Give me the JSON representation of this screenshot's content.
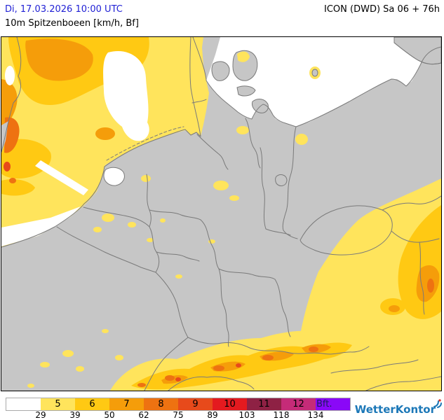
{
  "header": {
    "datetime": "Di, 17.03.2026 10:00 UTC",
    "parameter": "10m Spitzenboeen [km/h, Bf]",
    "model_run": "ICON (DWD) Sa 06 + 76h"
  },
  "legend": {
    "unit_label": "Bft.",
    "boxes": [
      {
        "label": "",
        "color": "#FFFFFF"
      },
      {
        "label": "5",
        "color": "#FFE45C"
      },
      {
        "label": "6",
        "color": "#FFC913"
      },
      {
        "label": "7",
        "color": "#F59D0A"
      },
      {
        "label": "8",
        "color": "#EE7211"
      },
      {
        "label": "9",
        "color": "#E74A1B"
      },
      {
        "label": "10",
        "color": "#E41A1F"
      },
      {
        "label": "11",
        "color": "#8E2144"
      },
      {
        "label": "12",
        "color": "#C52B78"
      },
      {
        "label": "",
        "color": "#8A08F7"
      }
    ],
    "thresholds": [
      "29",
      "39",
      "50",
      "62",
      "75",
      "89",
      "103",
      "118",
      "134"
    ]
  },
  "map": {
    "colors": {
      "land": "#C6C6C6",
      "sea": "#FFFFFF",
      "border": "#7A7A7A",
      "gust_bft5": "#FFE45C",
      "gust_bft6": "#FFC913",
      "gust_bft7": "#F59D0A",
      "gust_bft8": "#EE7211",
      "gust_bft9": "#E74A1B",
      "frame": "#000000"
    }
  },
  "branding": {
    "name": "WetterKontor"
  }
}
